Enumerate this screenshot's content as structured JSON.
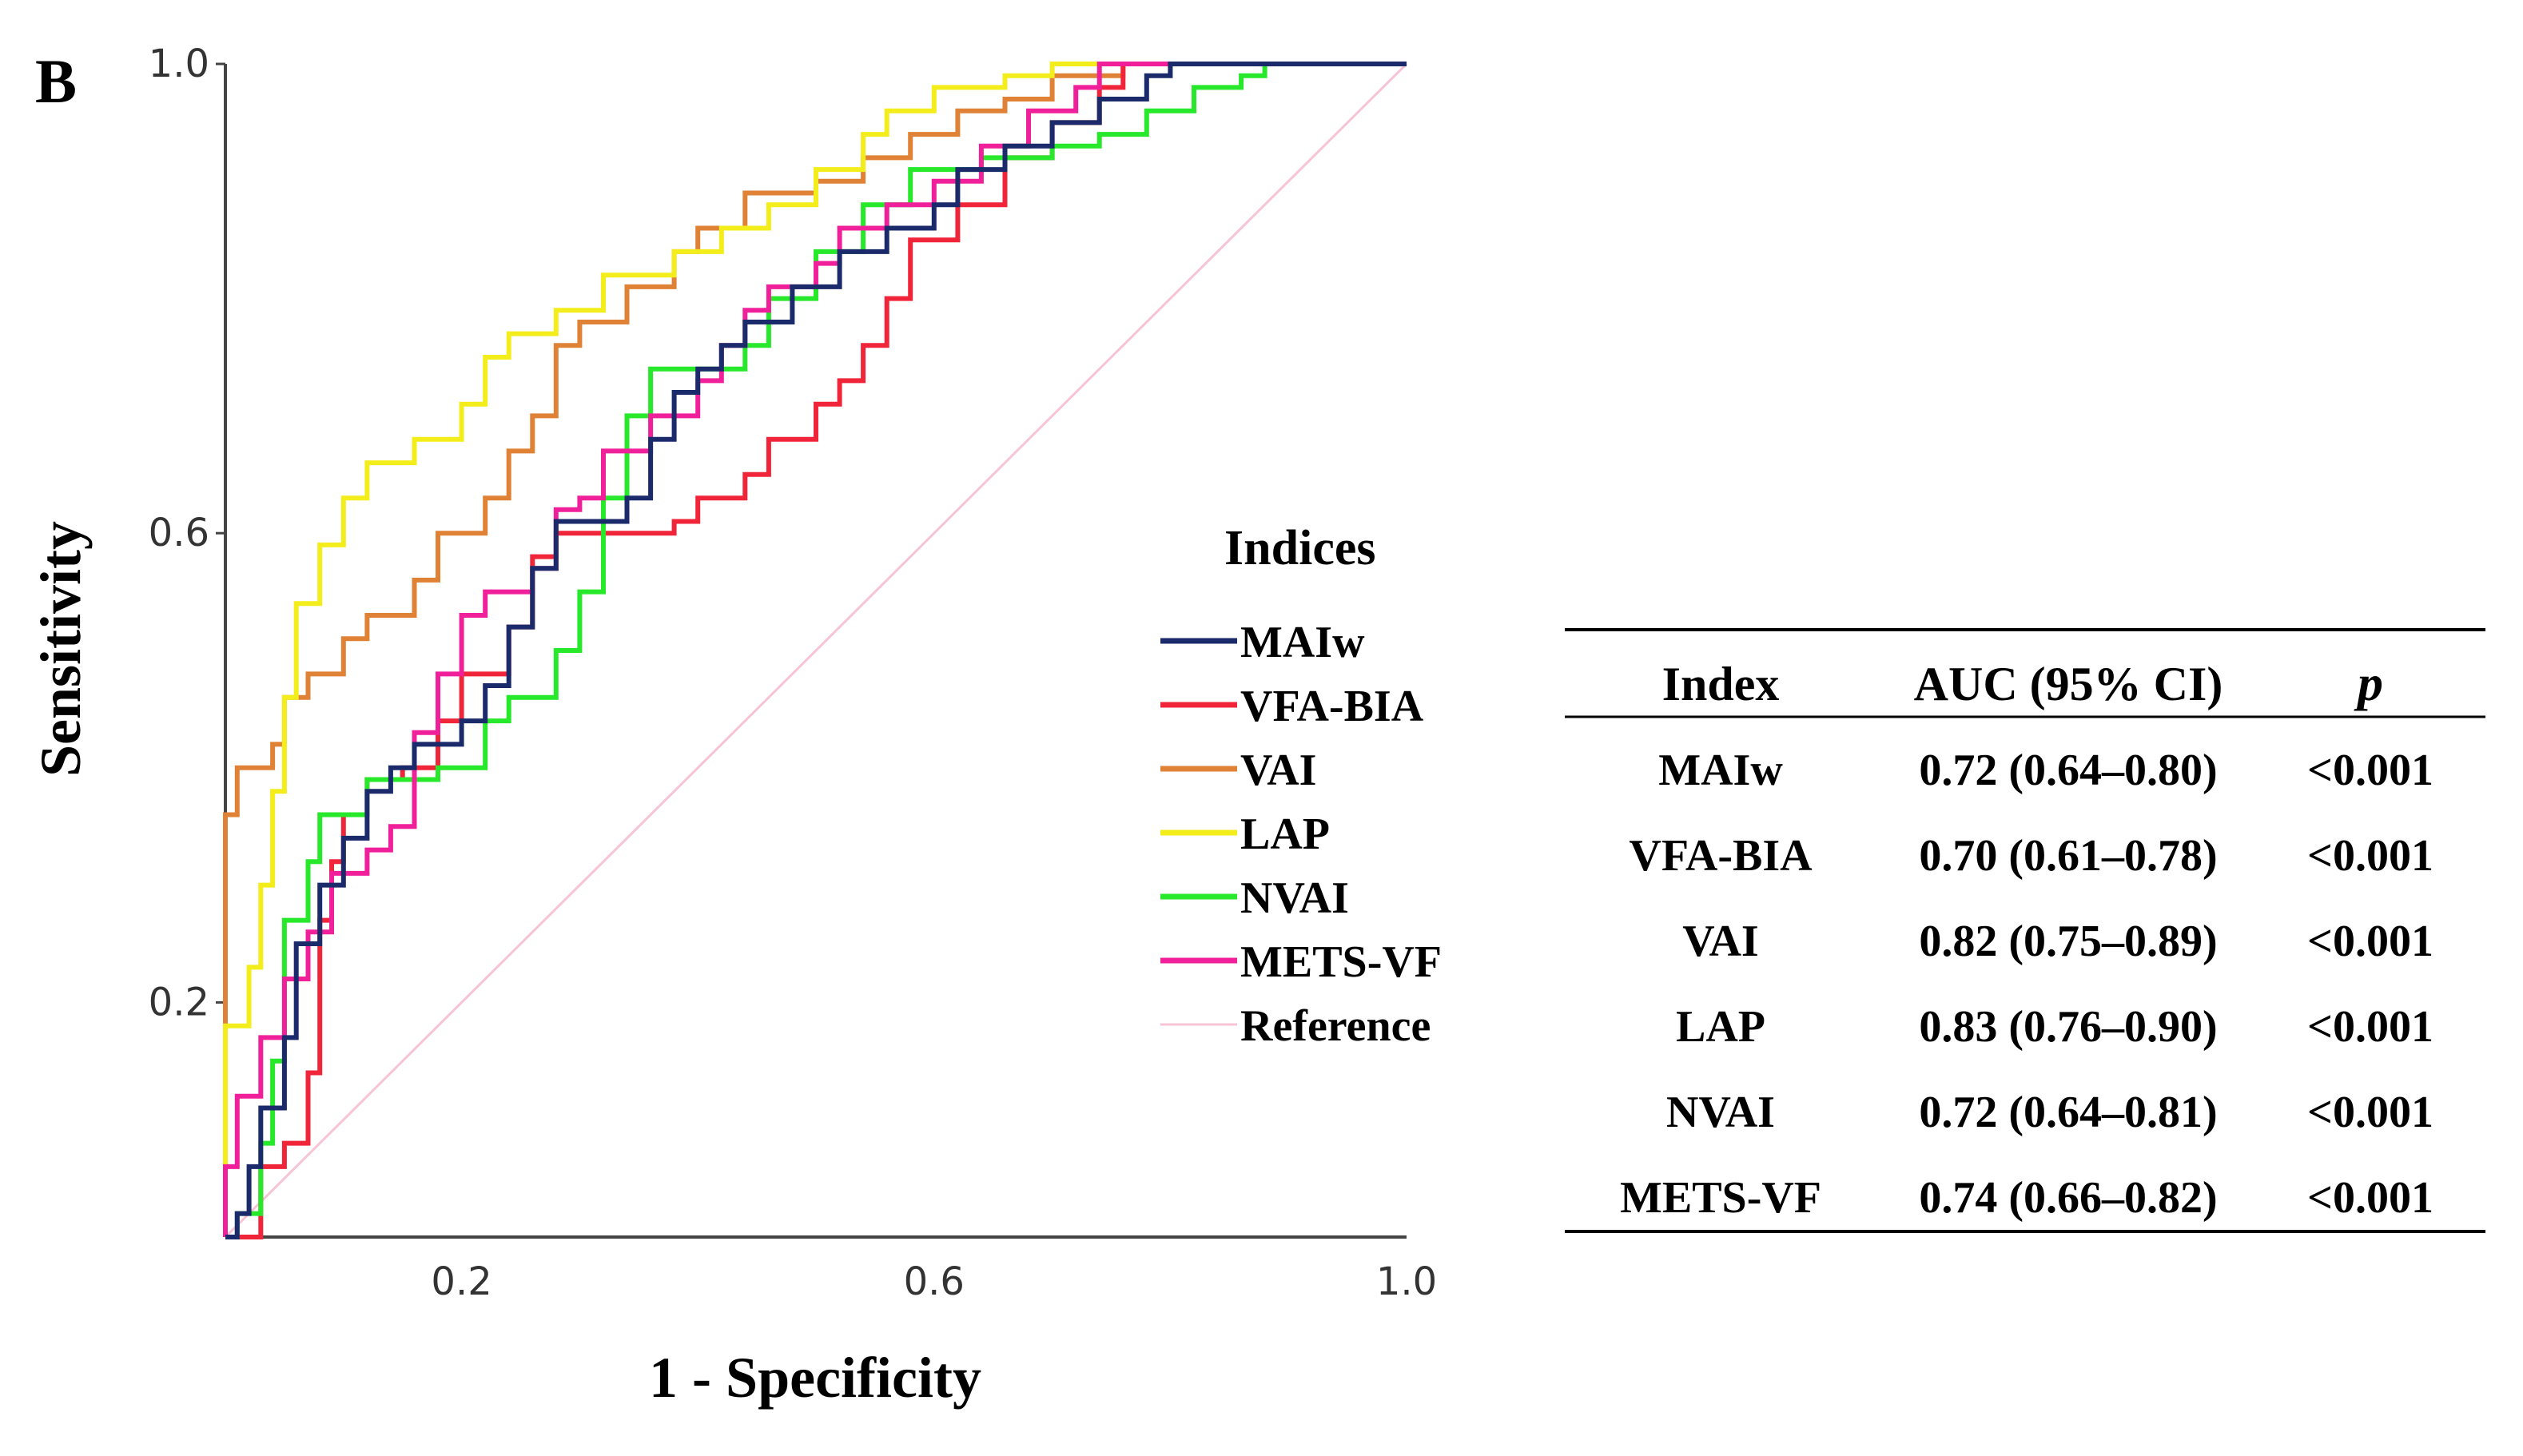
{
  "panel_label": "B",
  "chart_data": {
    "type": "line",
    "title": "",
    "xlabel": "1 - Specificity",
    "ylabel": "Sensitivity",
    "xlim": [
      0,
      1
    ],
    "ylim": [
      0,
      1
    ],
    "x_ticks": [
      {
        "value": 0.2,
        "label": "0.2"
      },
      {
        "value": 0.6,
        "label": "0.6"
      },
      {
        "value": 1.0,
        "label": "1.0"
      }
    ],
    "y_ticks": [
      {
        "value": 0.2,
        "label": "0.2"
      },
      {
        "value": 0.6,
        "label": "0.6"
      },
      {
        "value": 1.0,
        "label": "1.0"
      }
    ],
    "grid": false,
    "legend": {
      "title": "Indices",
      "placement": "right"
    },
    "series": [
      {
        "name": "MAIw",
        "color": "#1b2a6b",
        "points": [
          [
            0,
            0
          ],
          [
            0.01,
            0.02
          ],
          [
            0.02,
            0.06
          ],
          [
            0.03,
            0.11
          ],
          [
            0.05,
            0.17
          ],
          [
            0.06,
            0.25
          ],
          [
            0.08,
            0.3
          ],
          [
            0.1,
            0.34
          ],
          [
            0.12,
            0.38
          ],
          [
            0.14,
            0.4
          ],
          [
            0.16,
            0.42
          ],
          [
            0.2,
            0.44
          ],
          [
            0.22,
            0.47
          ],
          [
            0.24,
            0.52
          ],
          [
            0.26,
            0.57
          ],
          [
            0.28,
            0.61
          ],
          [
            0.34,
            0.63
          ],
          [
            0.36,
            0.68
          ],
          [
            0.38,
            0.72
          ],
          [
            0.4,
            0.74
          ],
          [
            0.42,
            0.76
          ],
          [
            0.44,
            0.78
          ],
          [
            0.48,
            0.81
          ],
          [
            0.52,
            0.84
          ],
          [
            0.56,
            0.86
          ],
          [
            0.6,
            0.88
          ],
          [
            0.62,
            0.91
          ],
          [
            0.66,
            0.93
          ],
          [
            0.7,
            0.95
          ],
          [
            0.74,
            0.97
          ],
          [
            0.78,
            0.99
          ],
          [
            0.8,
            1.0
          ],
          [
            1,
            1
          ]
        ]
      },
      {
        "name": "VFA-BIA",
        "color": "#f0253a",
        "points": [
          [
            0,
            0
          ],
          [
            0.02,
            0.0
          ],
          [
            0.03,
            0.06
          ],
          [
            0.05,
            0.08
          ],
          [
            0.07,
            0.14
          ],
          [
            0.08,
            0.27
          ],
          [
            0.09,
            0.32
          ],
          [
            0.1,
            0.36
          ],
          [
            0.12,
            0.39
          ],
          [
            0.15,
            0.4
          ],
          [
            0.18,
            0.44
          ],
          [
            0.2,
            0.48
          ],
          [
            0.24,
            0.52
          ],
          [
            0.26,
            0.58
          ],
          [
            0.28,
            0.6
          ],
          [
            0.38,
            0.61
          ],
          [
            0.4,
            0.63
          ],
          [
            0.44,
            0.65
          ],
          [
            0.46,
            0.68
          ],
          [
            0.5,
            0.71
          ],
          [
            0.52,
            0.73
          ],
          [
            0.54,
            0.76
          ],
          [
            0.56,
            0.8
          ],
          [
            0.58,
            0.85
          ],
          [
            0.62,
            0.88
          ],
          [
            0.66,
            0.92
          ],
          [
            0.7,
            0.95
          ],
          [
            0.74,
            0.98
          ],
          [
            0.76,
            1.0
          ],
          [
            1,
            1
          ]
        ]
      },
      {
        "name": "VAI",
        "color": "#e08236",
        "points": [
          [
            0,
            0
          ],
          [
            0.0,
            0.36
          ],
          [
            0.01,
            0.4
          ],
          [
            0.04,
            0.42
          ],
          [
            0.05,
            0.46
          ],
          [
            0.07,
            0.48
          ],
          [
            0.1,
            0.51
          ],
          [
            0.12,
            0.53
          ],
          [
            0.16,
            0.56
          ],
          [
            0.18,
            0.6
          ],
          [
            0.22,
            0.63
          ],
          [
            0.24,
            0.67
          ],
          [
            0.26,
            0.7
          ],
          [
            0.28,
            0.76
          ],
          [
            0.3,
            0.78
          ],
          [
            0.34,
            0.81
          ],
          [
            0.38,
            0.84
          ],
          [
            0.4,
            0.86
          ],
          [
            0.44,
            0.89
          ],
          [
            0.5,
            0.9
          ],
          [
            0.54,
            0.92
          ],
          [
            0.58,
            0.94
          ],
          [
            0.62,
            0.96
          ],
          [
            0.66,
            0.97
          ],
          [
            0.7,
            0.99
          ],
          [
            0.76,
            1.0
          ],
          [
            1,
            1
          ]
        ]
      },
      {
        "name": "LAP",
        "color": "#f4ed1c",
        "points": [
          [
            0,
            0
          ],
          [
            0.0,
            0.18
          ],
          [
            0.02,
            0.23
          ],
          [
            0.03,
            0.3
          ],
          [
            0.04,
            0.38
          ],
          [
            0.05,
            0.46
          ],
          [
            0.06,
            0.54
          ],
          [
            0.08,
            0.59
          ],
          [
            0.1,
            0.63
          ],
          [
            0.12,
            0.66
          ],
          [
            0.16,
            0.68
          ],
          [
            0.2,
            0.71
          ],
          [
            0.22,
            0.75
          ],
          [
            0.24,
            0.77
          ],
          [
            0.28,
            0.79
          ],
          [
            0.32,
            0.82
          ],
          [
            0.38,
            0.84
          ],
          [
            0.42,
            0.86
          ],
          [
            0.46,
            0.88
          ],
          [
            0.5,
            0.91
          ],
          [
            0.54,
            0.94
          ],
          [
            0.56,
            0.96
          ],
          [
            0.6,
            0.98
          ],
          [
            0.66,
            0.99
          ],
          [
            0.7,
            1.0
          ],
          [
            1,
            1
          ]
        ]
      },
      {
        "name": "NVAI",
        "color": "#27e82a",
        "points": [
          [
            0,
            0
          ],
          [
            0.01,
            0.02
          ],
          [
            0.03,
            0.08
          ],
          [
            0.04,
            0.15
          ],
          [
            0.05,
            0.27
          ],
          [
            0.07,
            0.32
          ],
          [
            0.08,
            0.36
          ],
          [
            0.12,
            0.39
          ],
          [
            0.18,
            0.4
          ],
          [
            0.22,
            0.44
          ],
          [
            0.24,
            0.46
          ],
          [
            0.28,
            0.5
          ],
          [
            0.3,
            0.55
          ],
          [
            0.32,
            0.63
          ],
          [
            0.34,
            0.7
          ],
          [
            0.36,
            0.74
          ],
          [
            0.44,
            0.76
          ],
          [
            0.46,
            0.8
          ],
          [
            0.5,
            0.84
          ],
          [
            0.54,
            0.88
          ],
          [
            0.58,
            0.91
          ],
          [
            0.64,
            0.92
          ],
          [
            0.7,
            0.93
          ],
          [
            0.74,
            0.94
          ],
          [
            0.78,
            0.96
          ],
          [
            0.82,
            0.98
          ],
          [
            0.86,
            0.99
          ],
          [
            0.88,
            1.0
          ],
          [
            1,
            1
          ]
        ]
      },
      {
        "name": "METS-VF",
        "color": "#f0209a",
        "points": [
          [
            0,
            0
          ],
          [
            0.0,
            0.06
          ],
          [
            0.01,
            0.12
          ],
          [
            0.03,
            0.17
          ],
          [
            0.05,
            0.22
          ],
          [
            0.07,
            0.26
          ],
          [
            0.09,
            0.31
          ],
          [
            0.12,
            0.33
          ],
          [
            0.14,
            0.35
          ],
          [
            0.16,
            0.43
          ],
          [
            0.18,
            0.48
          ],
          [
            0.2,
            0.53
          ],
          [
            0.22,
            0.55
          ],
          [
            0.26,
            0.57
          ],
          [
            0.28,
            0.62
          ],
          [
            0.3,
            0.63
          ],
          [
            0.32,
            0.67
          ],
          [
            0.36,
            0.7
          ],
          [
            0.4,
            0.73
          ],
          [
            0.42,
            0.76
          ],
          [
            0.44,
            0.79
          ],
          [
            0.46,
            0.81
          ],
          [
            0.5,
            0.83
          ],
          [
            0.52,
            0.86
          ],
          [
            0.56,
            0.88
          ],
          [
            0.6,
            0.9
          ],
          [
            0.64,
            0.93
          ],
          [
            0.68,
            0.96
          ],
          [
            0.72,
            0.98
          ],
          [
            0.74,
            1.0
          ],
          [
            1,
            1
          ]
        ]
      },
      {
        "name": "Reference",
        "color": "#f6c4d6",
        "points": [
          [
            0,
            0
          ],
          [
            1,
            1
          ]
        ]
      }
    ]
  },
  "auc_table": {
    "headers": {
      "index": "Index",
      "auc": "AUC (95% CI)",
      "p": "p"
    },
    "rows": [
      {
        "index": "MAIw",
        "auc": "0.72 (0.64–0.80)",
        "p": "<0.001"
      },
      {
        "index": "VFA-BIA",
        "auc": "0.70 (0.61–0.78)",
        "p": "<0.001"
      },
      {
        "index": "VAI",
        "auc": "0.82 (0.75–0.89)",
        "p": "<0.001"
      },
      {
        "index": "LAP",
        "auc": "0.83 (0.76–0.90)",
        "p": "<0.001"
      },
      {
        "index": "NVAI",
        "auc": "0.72 (0.64–0.81)",
        "p": "<0.001"
      },
      {
        "index": "METS-VF",
        "auc": "0.74 (0.66–0.82)",
        "p": "<0.001"
      }
    ]
  }
}
